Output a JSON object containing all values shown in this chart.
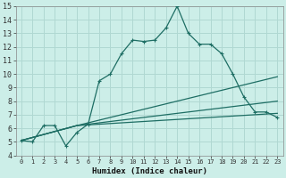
{
  "xlabel": "Humidex (Indice chaleur)",
  "bg_color": "#cceee8",
  "grid_color": "#b0d8d2",
  "line_color": "#1e6e64",
  "xlim": [
    -0.5,
    23.5
  ],
  "ylim": [
    4,
    15
  ],
  "xticks": [
    0,
    1,
    2,
    3,
    4,
    5,
    6,
    7,
    8,
    9,
    10,
    11,
    12,
    13,
    14,
    15,
    16,
    17,
    18,
    19,
    20,
    21,
    22,
    23
  ],
  "yticks": [
    4,
    5,
    6,
    7,
    8,
    9,
    10,
    11,
    12,
    13,
    14,
    15
  ],
  "main_line": {
    "x": [
      0,
      1,
      2,
      3,
      4,
      5,
      6,
      7,
      8,
      9,
      10,
      11,
      12,
      13,
      14,
      15,
      16,
      17,
      18,
      19,
      20,
      21,
      22,
      23
    ],
    "y": [
      5.1,
      5.0,
      6.2,
      6.2,
      4.7,
      5.7,
      6.3,
      9.5,
      10.0,
      11.5,
      12.5,
      12.4,
      12.5,
      13.4,
      15.0,
      13.0,
      12.2,
      12.2,
      11.5,
      10.0,
      8.3,
      7.2,
      7.2,
      6.8
    ]
  },
  "diag_lines": [
    {
      "x": [
        0,
        5,
        23
      ],
      "y": [
        5.1,
        6.2,
        9.8
      ]
    },
    {
      "x": [
        0,
        5,
        23
      ],
      "y": [
        5.1,
        6.2,
        8.0
      ]
    },
    {
      "x": [
        0,
        5,
        23
      ],
      "y": [
        5.1,
        6.2,
        7.1
      ]
    }
  ]
}
